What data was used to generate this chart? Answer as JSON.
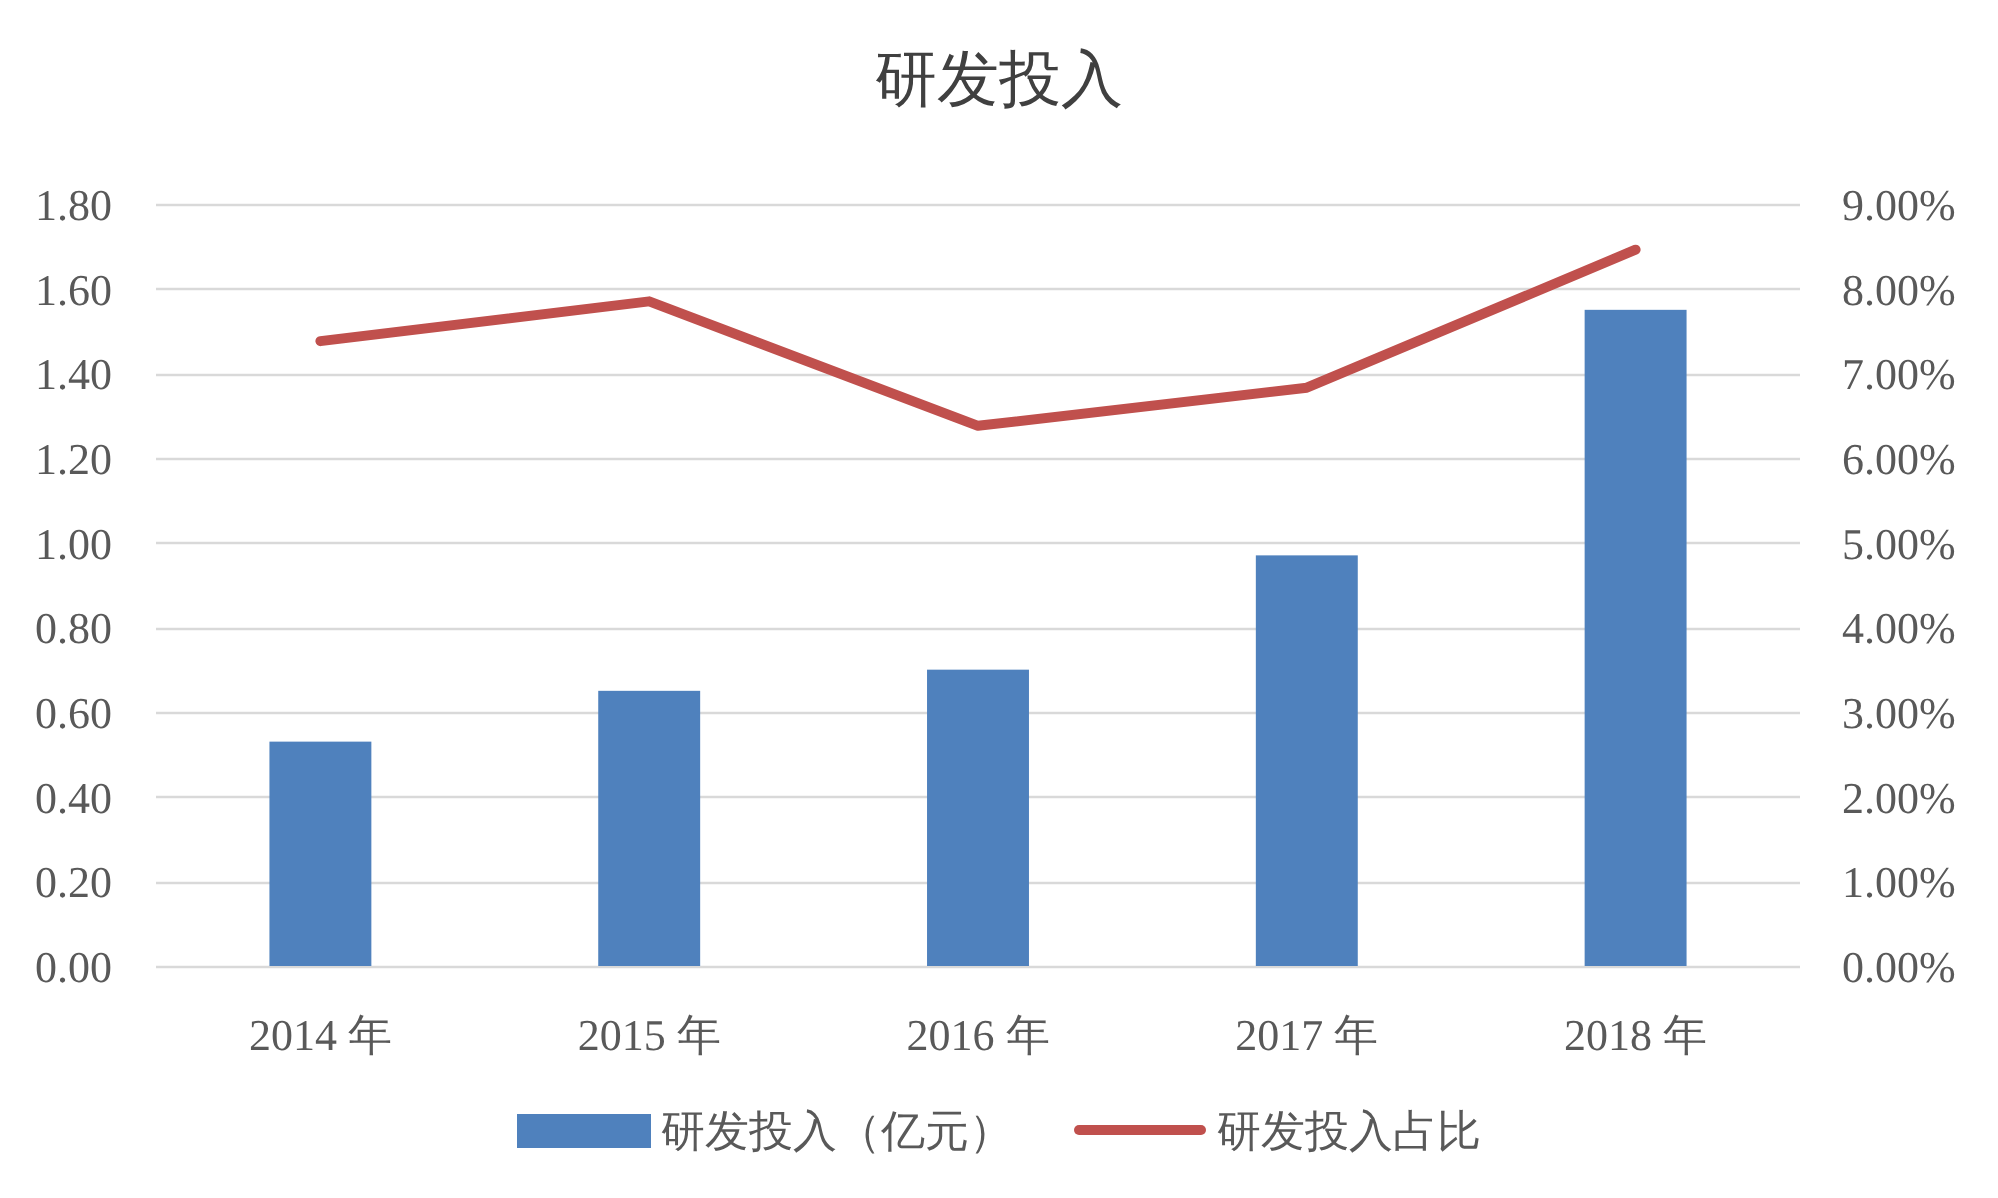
{
  "chart_data": {
    "type": "bar",
    "title": "研发投入",
    "categories": [
      "2014 年",
      "2015 年",
      "2016 年",
      "2017 年",
      "2018 年"
    ],
    "series": [
      {
        "name": "研发投入（亿元）",
        "color": "#4f81bd",
        "values": [
          0.53,
          0.65,
          0.7,
          0.97,
          1.55
        ]
      },
      {
        "name": "研发投入占比",
        "type": "line",
        "axis": "y2",
        "color": "#c0504d",
        "values": [
          7.38,
          7.85,
          6.38,
          6.83,
          8.46
        ]
      }
    ],
    "ylim": [
      0,
      1.8
    ],
    "yticks": [
      {
        "value": 0,
        "label": "0.00"
      },
      {
        "value": 0.2,
        "label": "0.20"
      },
      {
        "value": 0.4,
        "label": "0.40"
      },
      {
        "value": 0.6,
        "label": "0.60"
      },
      {
        "value": 0.8,
        "label": "0.80"
      },
      {
        "value": 1,
        "label": "1.00"
      },
      {
        "value": 1.2,
        "label": "1.20"
      },
      {
        "value": 1.4,
        "label": "1.40"
      },
      {
        "value": 1.6,
        "label": "1.60"
      },
      {
        "value": 1.8,
        "label": "1.80"
      }
    ],
    "y2lim": [
      0,
      9
    ],
    "y2ticks": [
      {
        "value": 0,
        "label": "0.00%"
      },
      {
        "value": 1,
        "label": "1.00%"
      },
      {
        "value": 2,
        "label": "2.00%"
      },
      {
        "value": 3,
        "label": "3.00%"
      },
      {
        "value": 4,
        "label": "4.00%"
      },
      {
        "value": 5,
        "label": "5.00%"
      },
      {
        "value": 6,
        "label": "6.00%"
      },
      {
        "value": 7,
        "label": "7.00%"
      },
      {
        "value": 8,
        "label": "8.00%"
      },
      {
        "value": 9,
        "label": "9.00%"
      }
    ],
    "grid": "y",
    "legend": "bottom"
  }
}
